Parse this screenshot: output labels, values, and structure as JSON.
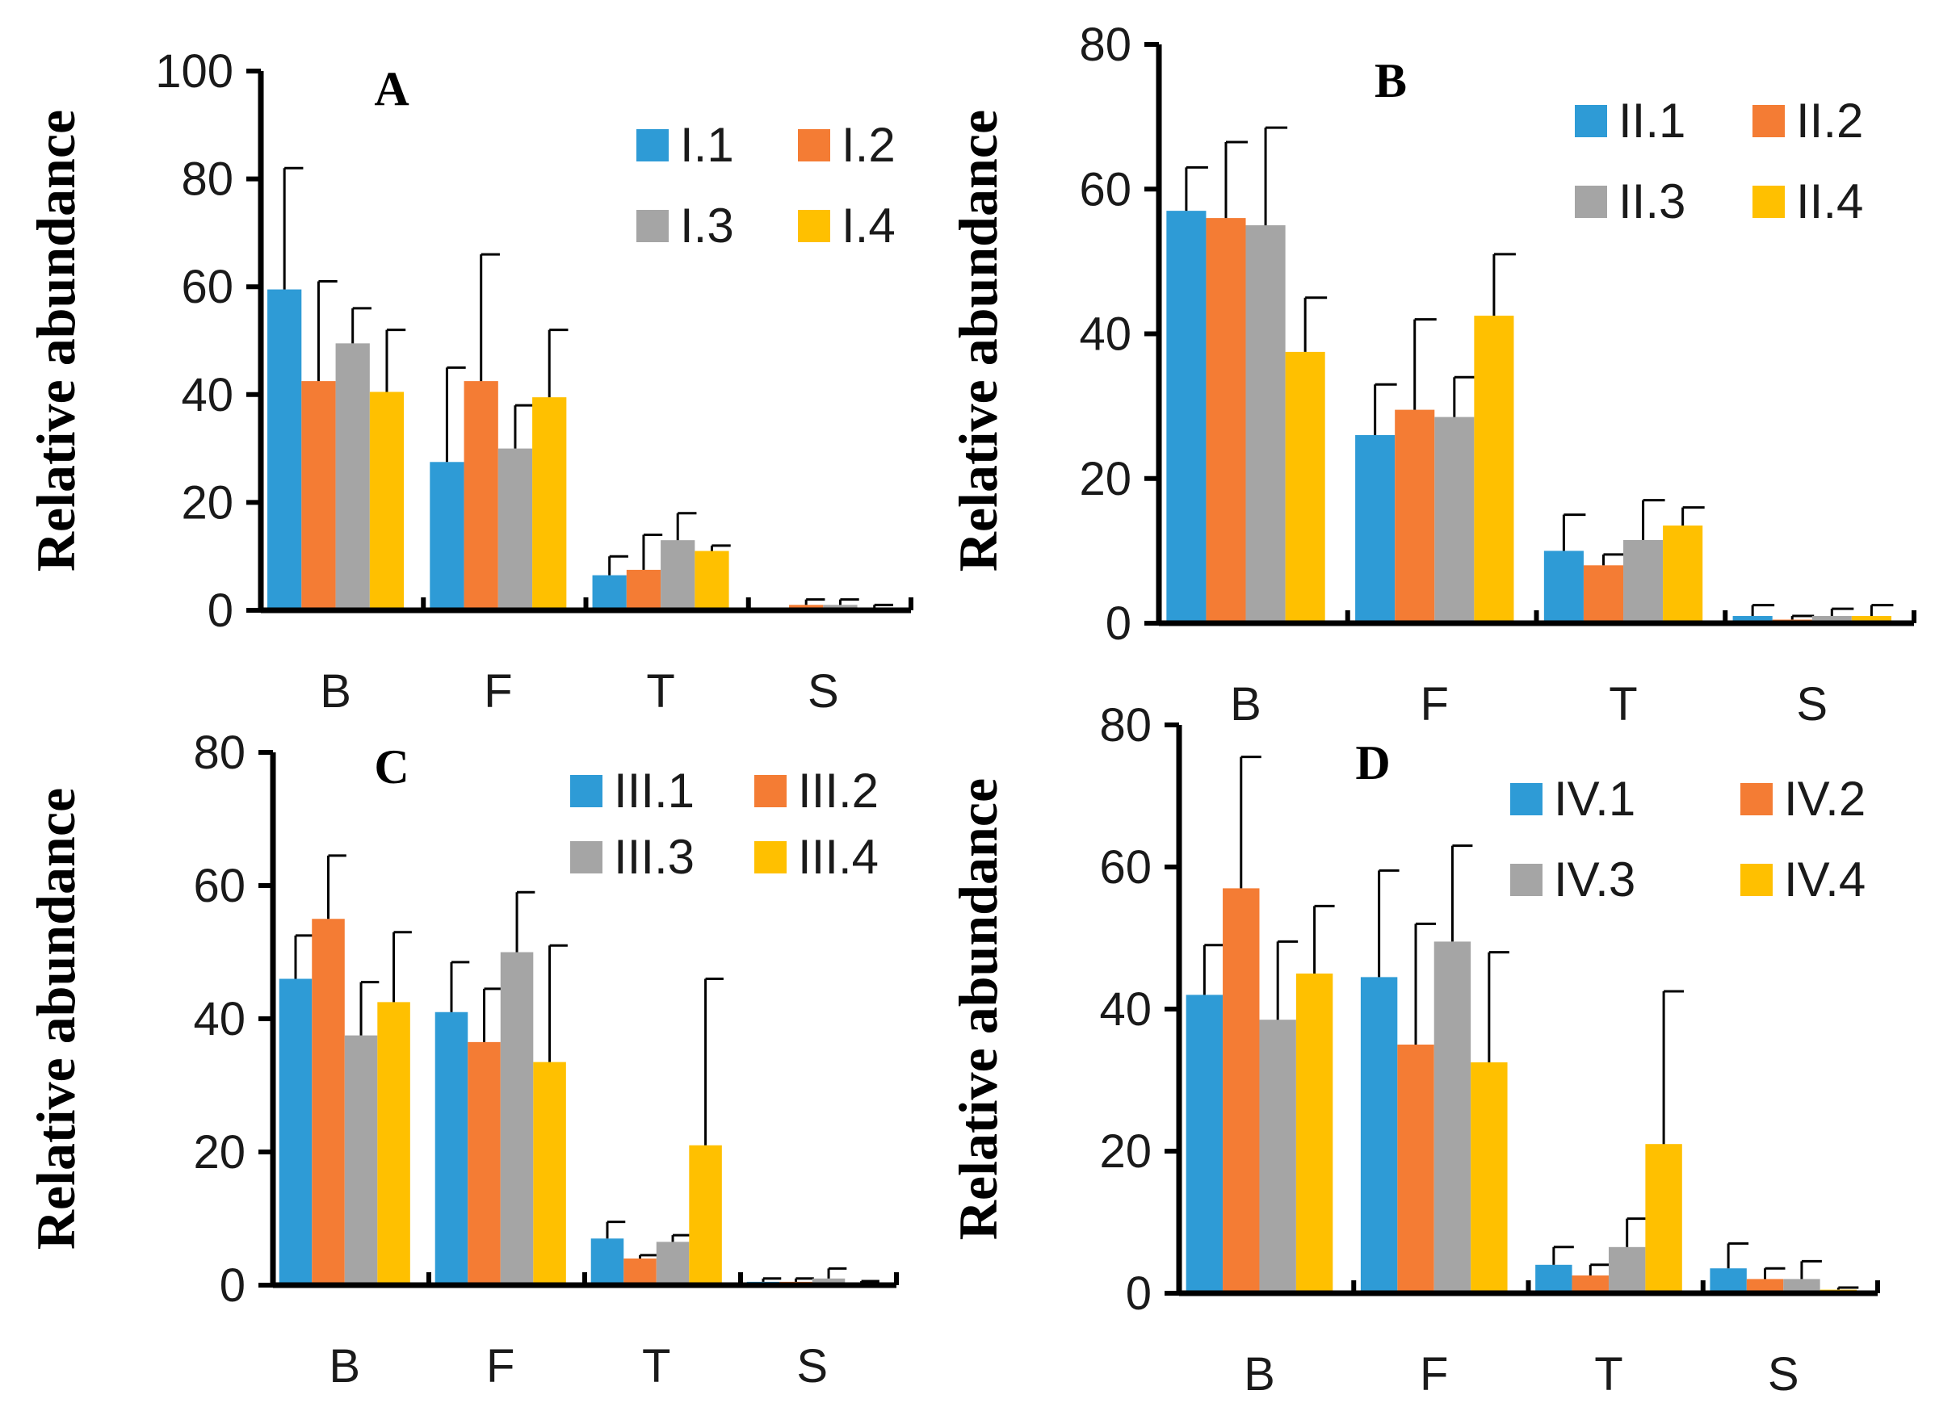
{
  "colors": {
    "s1": "#2E9BD6",
    "s2": "#F47C34",
    "s3": "#A5A5A5",
    "s4": "#FFC000"
  },
  "chart_data": [
    {
      "type": "bar",
      "title": "A",
      "ylabel": "Relative abundance",
      "xlabel": "",
      "categories": [
        "B",
        "F",
        "T",
        "S"
      ],
      "ylim": [
        0,
        100
      ],
      "yticks": [
        0,
        20,
        40,
        60,
        80,
        100
      ],
      "legend_position": "top-right",
      "series": [
        {
          "name": "I.1",
          "values": [
            59.5,
            27.5,
            6.5,
            0.1
          ],
          "errors": [
            22.5,
            17.5,
            3.5,
            0.1
          ]
        },
        {
          "name": "I.2",
          "values": [
            42.5,
            42.5,
            7.5,
            1.0
          ],
          "errors": [
            18.5,
            23.5,
            6.5,
            1.0
          ]
        },
        {
          "name": "I.3",
          "values": [
            49.5,
            30.0,
            13.0,
            1.0
          ],
          "errors": [
            6.5,
            8.0,
            5.0,
            1.0
          ]
        },
        {
          "name": "I.4",
          "values": [
            40.5,
            39.5,
            11.0,
            0.5
          ],
          "errors": [
            11.5,
            12.5,
            1.0,
            0.5
          ]
        }
      ]
    },
    {
      "type": "bar",
      "title": "B",
      "ylabel": "Relative abundance",
      "xlabel": "",
      "categories": [
        "B",
        "F",
        "T",
        "S"
      ],
      "ylim": [
        0,
        80
      ],
      "yticks": [
        0,
        20,
        40,
        60,
        80
      ],
      "legend_position": "top-right",
      "series": [
        {
          "name": "II.1",
          "values": [
            57.0,
            26.0,
            10.0,
            1.0
          ],
          "errors": [
            6.0,
            7.0,
            5.0,
            1.5
          ]
        },
        {
          "name": "II.2",
          "values": [
            56.0,
            29.5,
            8.0,
            0.5
          ],
          "errors": [
            10.5,
            12.5,
            1.5,
            0.5
          ]
        },
        {
          "name": "II.3",
          "values": [
            55.0,
            28.5,
            11.5,
            1.0
          ],
          "errors": [
            13.5,
            5.5,
            5.5,
            1.0
          ]
        },
        {
          "name": "II.4",
          "values": [
            37.5,
            42.5,
            13.5,
            1.0
          ],
          "errors": [
            7.5,
            8.5,
            2.5,
            1.5
          ]
        }
      ]
    },
    {
      "type": "bar",
      "title": "C",
      "ylabel": "Relative abundance",
      "xlabel": "",
      "categories": [
        "B",
        "F",
        "T",
        "S"
      ],
      "ylim": [
        0,
        80
      ],
      "yticks": [
        0,
        20,
        40,
        60,
        80
      ],
      "legend_position": "top-right",
      "series": [
        {
          "name": "III.1",
          "values": [
            46.0,
            41.0,
            7.0,
            0.5
          ],
          "errors": [
            6.5,
            7.5,
            2.5,
            0.5
          ]
        },
        {
          "name": "III.2",
          "values": [
            55.0,
            36.5,
            4.0,
            0.5
          ],
          "errors": [
            9.5,
            8.0,
            0.5,
            0.5
          ]
        },
        {
          "name": "III.3",
          "values": [
            37.5,
            50.0,
            6.5,
            1.0
          ],
          "errors": [
            8.0,
            9.0,
            1.0,
            1.5
          ]
        },
        {
          "name": "III.4",
          "values": [
            42.5,
            33.5,
            21.0,
            0.3
          ],
          "errors": [
            10.5,
            17.5,
            25.0,
            0.3
          ]
        }
      ]
    },
    {
      "type": "bar",
      "title": "D",
      "ylabel": "Relative abundance",
      "xlabel": "",
      "categories": [
        "B",
        "F",
        "T",
        "S"
      ],
      "ylim": [
        0,
        80
      ],
      "yticks": [
        0,
        20,
        40,
        60,
        80
      ],
      "legend_position": "top-right",
      "series": [
        {
          "name": "IV.1",
          "values": [
            42.0,
            44.5,
            4.0,
            3.5
          ],
          "errors": [
            7.0,
            15.0,
            2.5,
            3.5
          ]
        },
        {
          "name": "IV.2",
          "values": [
            57.0,
            35.0,
            2.5,
            2.0
          ],
          "errors": [
            18.5,
            17.0,
            1.5,
            1.5
          ]
        },
        {
          "name": "IV.3",
          "values": [
            38.5,
            49.5,
            6.5,
            2.0
          ],
          "errors": [
            11.0,
            13.5,
            4.0,
            2.5
          ]
        },
        {
          "name": "IV.4",
          "values": [
            45.0,
            32.5,
            21.0,
            0.5
          ],
          "errors": [
            9.5,
            15.5,
            21.5,
            0.3
          ]
        }
      ]
    }
  ]
}
